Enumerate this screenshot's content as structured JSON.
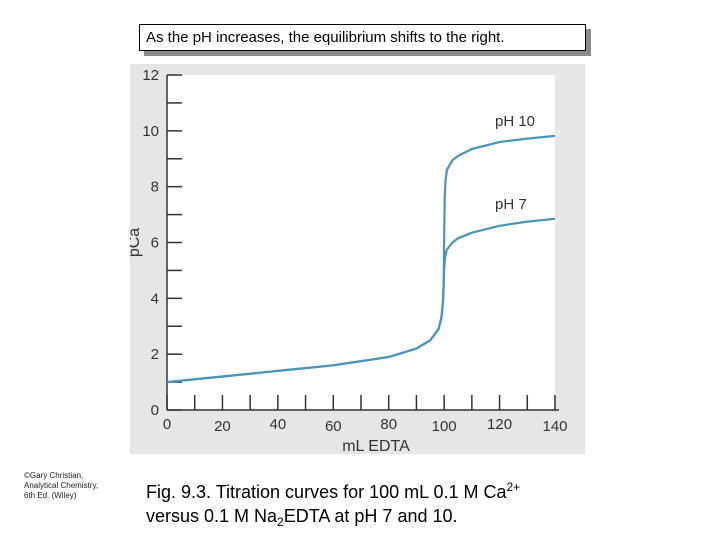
{
  "note": "As the pH increases, the equilibrium shifts to the right.",
  "credit": [
    "©Gary Christian,",
    "Analytical Chemistry,",
    "6th Ed. (Wiley)"
  ],
  "caption": {
    "line1_prefix": "Fig. 9.3. Titration curves for 100 mL 0.1 M Ca",
    "line1_sup": "2+",
    "line2_prefix": "versus 0.1 M Na",
    "line2_sub": "2",
    "line2_suffix": "EDTA at pH 7 and 10."
  },
  "chart_data": {
    "type": "line",
    "xlabel": "mL EDTA",
    "ylabel": "pCa",
    "xlim": [
      0,
      140
    ],
    "ylim": [
      0,
      12
    ],
    "xticks": [
      0,
      20,
      40,
      60,
      80,
      100,
      120,
      140
    ],
    "yticks": [
      0,
      2,
      4,
      6,
      8,
      10,
      12
    ],
    "line_color": "#4a95b5",
    "series": [
      {
        "name": "pH 10",
        "x": [
          0,
          20,
          40,
          60,
          80,
          90,
          95,
          98,
          99,
          99.5,
          99.8,
          100,
          100.2,
          100.5,
          101,
          103,
          105,
          110,
          120,
          130,
          140
        ],
        "y": [
          1.0,
          1.2,
          1.4,
          1.6,
          1.9,
          2.2,
          2.5,
          2.9,
          3.3,
          3.8,
          4.4,
          6.0,
          7.6,
          8.2,
          8.6,
          8.95,
          9.1,
          9.35,
          9.6,
          9.72,
          9.82
        ]
      },
      {
        "name": "pH 7",
        "x": [
          0,
          20,
          40,
          60,
          80,
          90,
          95,
          98,
          99,
          99.5,
          99.8,
          100,
          100.2,
          100.5,
          101,
          103,
          105,
          110,
          120,
          130,
          140
        ],
        "y": [
          1.0,
          1.2,
          1.4,
          1.6,
          1.9,
          2.2,
          2.5,
          2.9,
          3.3,
          3.8,
          4.4,
          5.0,
          5.3,
          5.55,
          5.75,
          6.0,
          6.15,
          6.35,
          6.6,
          6.75,
          6.85
        ]
      }
    ]
  }
}
